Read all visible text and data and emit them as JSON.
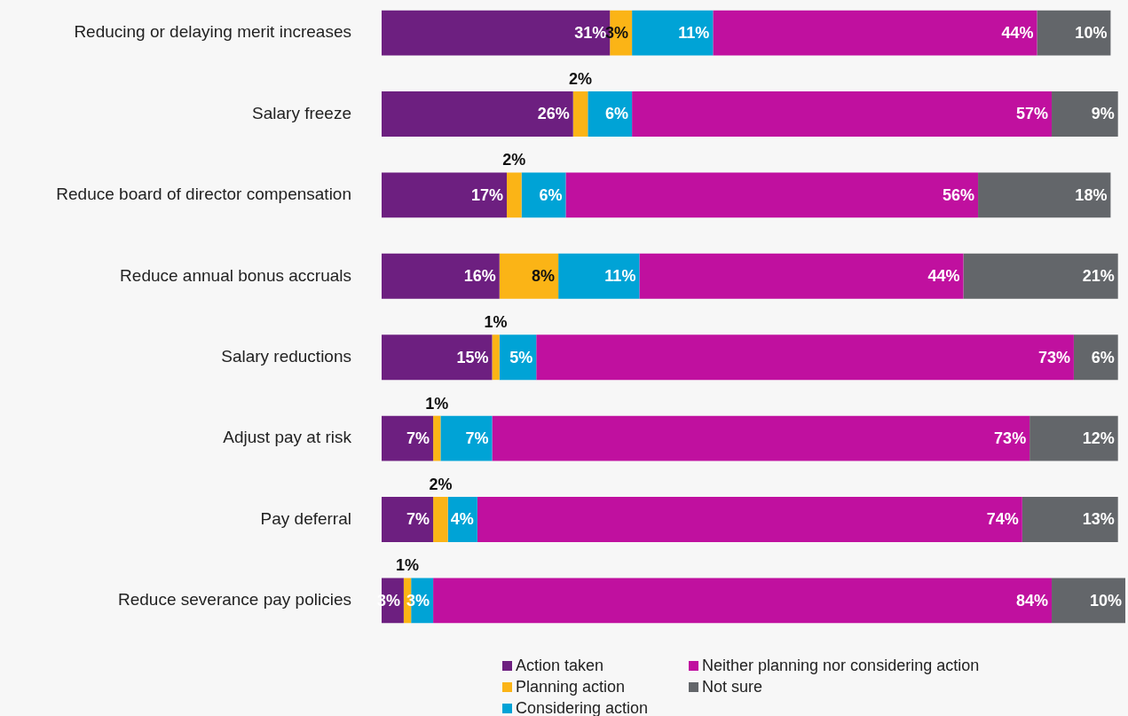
{
  "chart_data": {
    "type": "bar",
    "orientation": "horizontal",
    "stacked": true,
    "categories": [
      "Reducing or delaying merit increases",
      "Salary freeze",
      "Reduce board of director compensation",
      "Reduce annual bonus accruals",
      "Salary reductions",
      "Adjust pay at risk",
      "Pay deferral",
      "Reduce severance pay policies"
    ],
    "series": [
      {
        "name": "Action taken",
        "color": "#6d1f80",
        "values": [
          31,
          26,
          17,
          16,
          15,
          7,
          7,
          3
        ],
        "value_labels": [
          "31%",
          "26%",
          "17%",
          "16%",
          "15%",
          "7%",
          "7%",
          "3%"
        ]
      },
      {
        "name": "Planning action",
        "color": "#fbb416",
        "values": [
          3,
          2,
          2,
          8,
          1,
          1,
          2,
          1
        ],
        "value_labels": [
          "3%",
          "2%",
          "2%",
          "8%",
          "1%",
          "1%",
          "2%",
          "1%"
        ]
      },
      {
        "name": "Considering action",
        "color": "#00a3d6",
        "values": [
          11,
          6,
          6,
          11,
          5,
          7,
          4,
          3
        ],
        "value_labels": [
          "11%",
          "6%",
          "6%",
          "11%",
          "5%",
          "7%",
          "4%",
          "3%"
        ]
      },
      {
        "name": "Neither planning nor considering action",
        "color": "#c0109f",
        "values": [
          44,
          57,
          56,
          44,
          73,
          73,
          74,
          84
        ],
        "value_labels": [
          "44%",
          "57%",
          "56%",
          "44%",
          "73%",
          "73%",
          "74%",
          "84%"
        ]
      },
      {
        "name": "Not sure",
        "color": "#63666a",
        "values": [
          10,
          9,
          18,
          21,
          6,
          12,
          13,
          10
        ],
        "value_labels": [
          "10%",
          "9%",
          "18%",
          "21%",
          "6%",
          "12%",
          "13%",
          "10%"
        ]
      }
    ],
    "xlim": [
      0,
      101
    ],
    "tick_labels": "y",
    "legend": "bottom"
  }
}
